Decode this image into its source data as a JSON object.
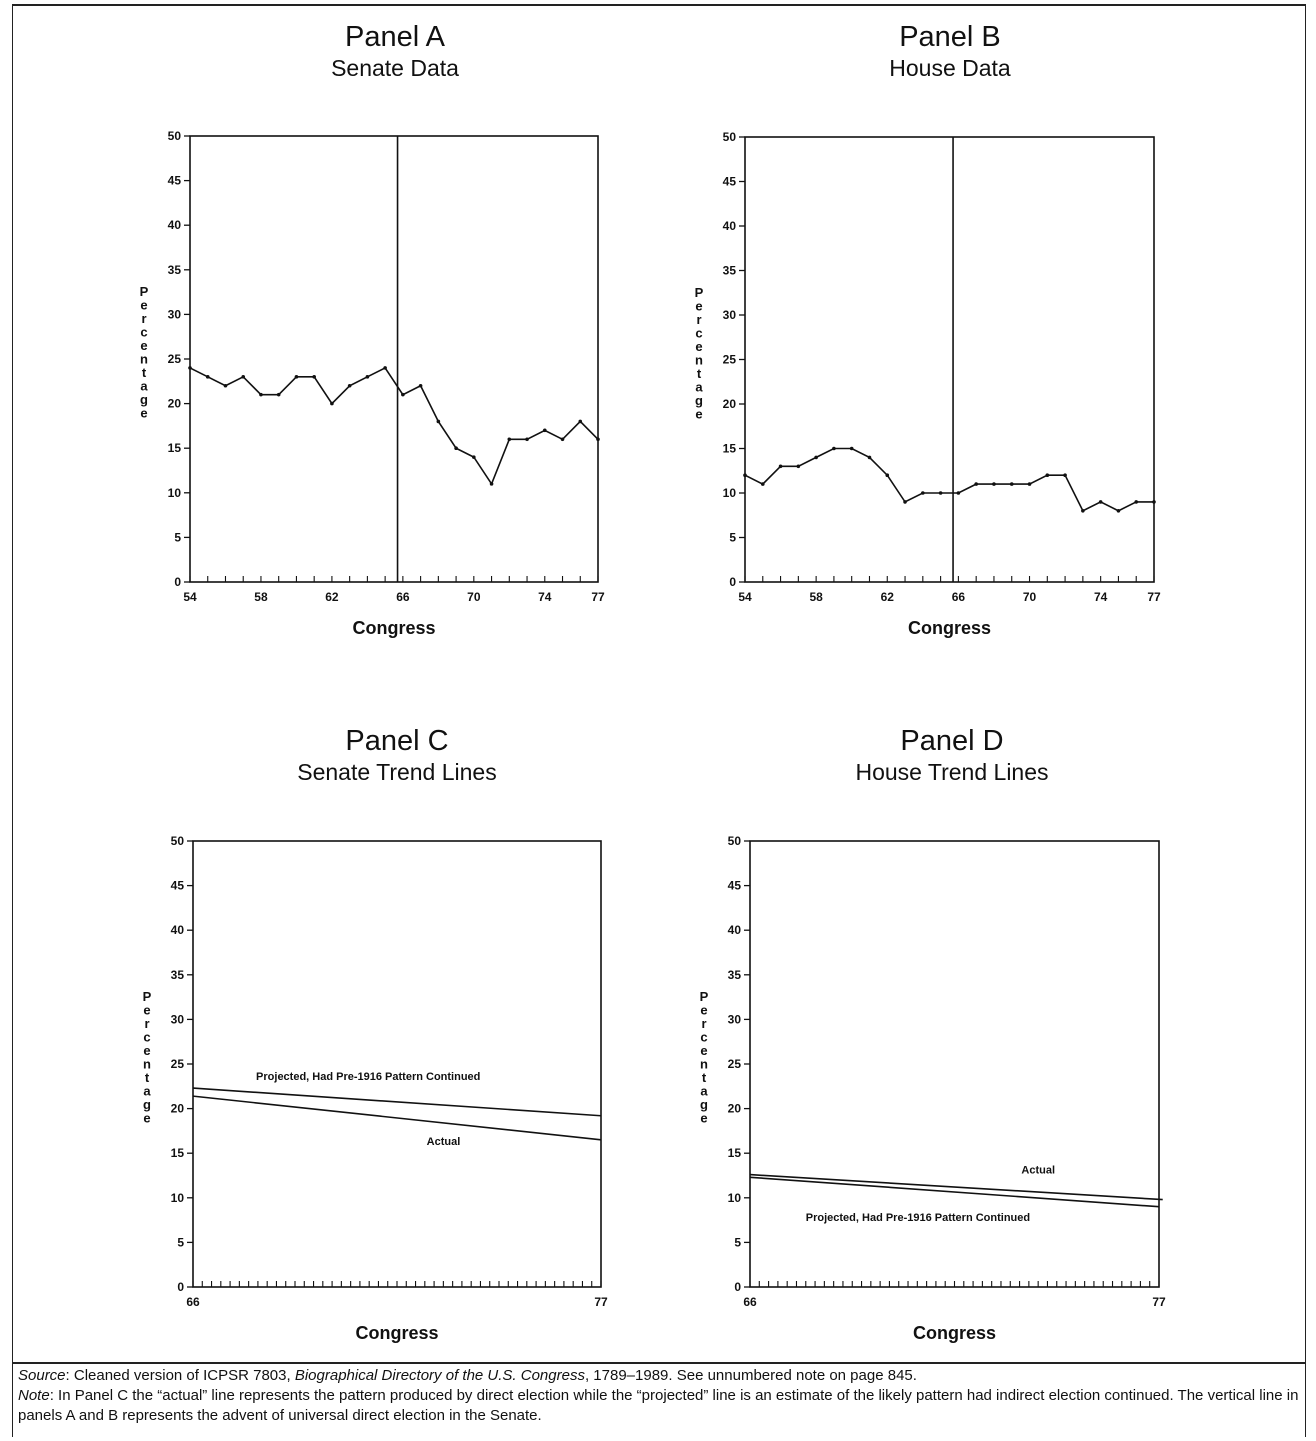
{
  "chart_data": [
    {
      "id": "panel-a",
      "type": "line",
      "panel_label": "Panel A",
      "title": "Senate Data",
      "xlabel": "Congress",
      "ylabel": "Percentage",
      "xlim": [
        54,
        77
      ],
      "ylim": [
        0,
        50
      ],
      "yticks": [
        0,
        5,
        10,
        15,
        20,
        25,
        30,
        35,
        40,
        45,
        50
      ],
      "xtick_labels": [
        54,
        58,
        62,
        66,
        70,
        74,
        77
      ],
      "vline": 65.7,
      "series": [
        {
          "x": [
            54,
            55,
            56,
            57,
            58,
            59,
            60,
            61,
            62,
            63,
            64,
            65,
            66,
            67,
            68,
            69,
            70,
            71,
            72,
            73,
            74,
            75,
            76,
            77
          ],
          "values": [
            24,
            23,
            22,
            23,
            21,
            21,
            23,
            23,
            20,
            22,
            23,
            24,
            21,
            22,
            18,
            15,
            14,
            11,
            16,
            16,
            17,
            16,
            18,
            16
          ]
        }
      ],
      "annotations": []
    },
    {
      "id": "panel-b",
      "type": "line",
      "panel_label": "Panel B",
      "title": "House Data",
      "xlabel": "Congress",
      "ylabel": "Percentage",
      "xlim": [
        54,
        77
      ],
      "ylim": [
        0,
        50
      ],
      "yticks": [
        0,
        5,
        10,
        15,
        20,
        25,
        30,
        35,
        40,
        45,
        50
      ],
      "xtick_labels": [
        54,
        58,
        62,
        66,
        70,
        74,
        77
      ],
      "vline": 65.7,
      "series": [
        {
          "x": [
            54,
            55,
            56,
            57,
            58,
            59,
            60,
            61,
            62,
            63,
            64,
            65,
            66,
            67,
            68,
            69,
            70,
            71,
            72,
            73,
            74,
            75,
            76,
            77
          ],
          "values": [
            12,
            11,
            13,
            13,
            14,
            15,
            15,
            14,
            12,
            9,
            10,
            10,
            10,
            11,
            11,
            11,
            11,
            12,
            12,
            8,
            9,
            8,
            9,
            9
          ]
        }
      ],
      "annotations": []
    },
    {
      "id": "panel-c",
      "type": "line",
      "panel_label": "Panel C",
      "title": "Senate Trend Lines",
      "xlabel": "Congress",
      "ylabel": "Percentage",
      "xlim": [
        66,
        77
      ],
      "ylim": [
        0,
        50
      ],
      "yticks": [
        0,
        5,
        10,
        15,
        20,
        25,
        30,
        35,
        40,
        45,
        50
      ],
      "xtick_labels": [
        66,
        77
      ],
      "minor_ticks": 44,
      "series": [
        {
          "x": [
            66,
            77
          ],
          "values": [
            22.3,
            19.2
          ]
        },
        {
          "x": [
            66,
            77
          ],
          "values": [
            21.4,
            16.5
          ]
        }
      ],
      "annotations": [
        {
          "text": "Projected, Had Pre-1916 Pattern Continued",
          "x": 67.7,
          "y": 23.2
        },
        {
          "text": "Actual",
          "x": 72.3,
          "y": 15.9
        }
      ]
    },
    {
      "id": "panel-d",
      "type": "line",
      "panel_label": "Panel D",
      "title": "House Trend Lines",
      "xlabel": "Congress",
      "ylabel": "Percentage",
      "xlim": [
        66,
        77
      ],
      "ylim": [
        0,
        50
      ],
      "yticks": [
        0,
        5,
        10,
        15,
        20,
        25,
        30,
        35,
        40,
        45,
        50
      ],
      "xtick_labels": [
        66,
        77
      ],
      "minor_ticks": 44,
      "series": [
        {
          "x": [
            66,
            77.1
          ],
          "values": [
            12.6,
            9.8
          ]
        },
        {
          "x": [
            66,
            77
          ],
          "values": [
            12.3,
            9.0
          ]
        }
      ],
      "annotations": [
        {
          "text": "Actual",
          "x": 73.3,
          "y": 12.7
        },
        {
          "text": "Projected, Had Pre-1916 Pattern Continued",
          "x": 67.5,
          "y": 7.4
        }
      ]
    }
  ],
  "footnote": {
    "source_label": "Source",
    "source_text_1": ": Cleaned version of ICPSR 7803, ",
    "source_italic": "Biographical Directory of the U.S. Congress",
    "source_text_2": ", 1789–1989. See unnumbered note on page 845.",
    "note_label": "Note",
    "note_text": ": In Panel C the “actual” line represents the pattern produced by direct election while the “projected” line is an estimate of the likely pattern had indirect election continued. The vertical line in panels A and B represents the advent of universal direct election in the Senate."
  }
}
